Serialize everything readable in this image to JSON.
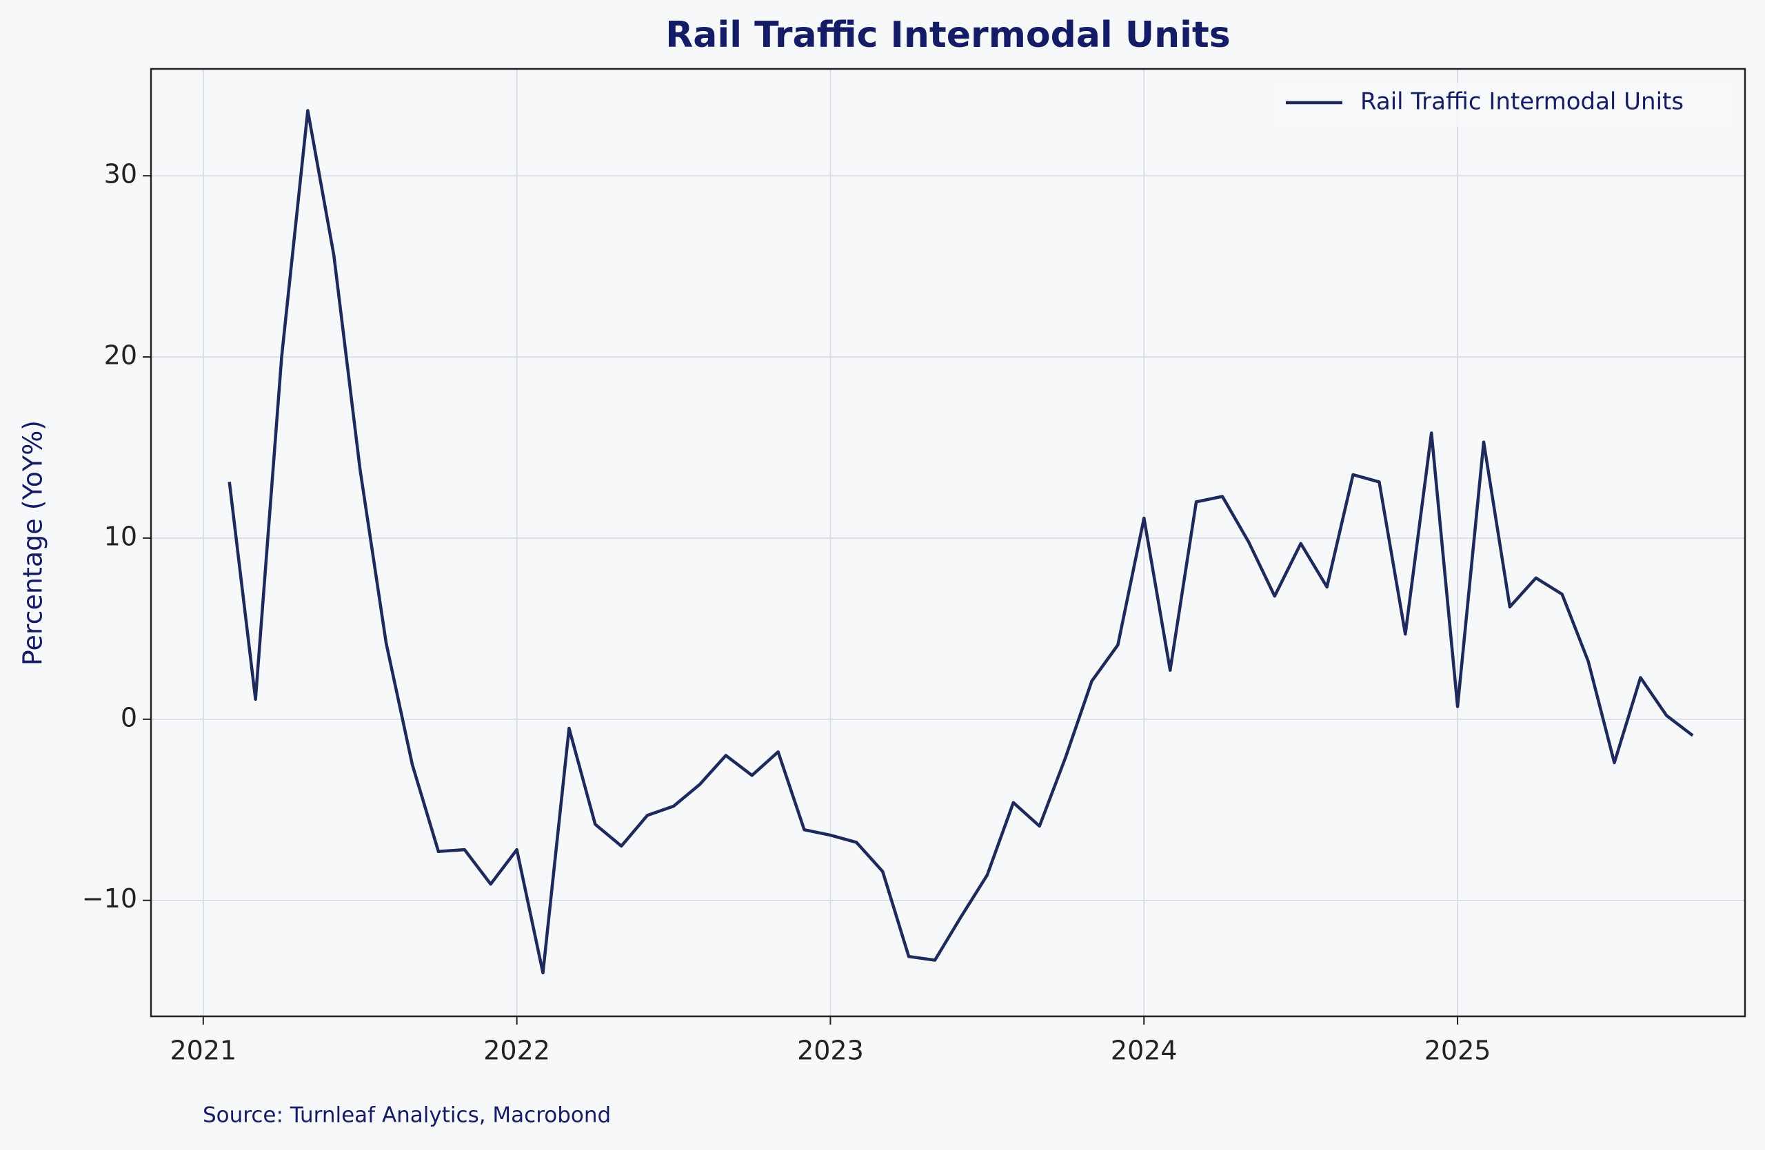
{
  "chart_data": {
    "type": "line",
    "title": "Rail Traffic Intermodal Units",
    "y_label": "Percentage (YoY%)",
    "source": "Source: Turnleaf Analytics, Macrobond",
    "x": [
      "2021-02",
      "2021-03",
      "2021-04",
      "2021-05",
      "2021-06",
      "2021-07",
      "2021-08",
      "2021-09",
      "2021-10",
      "2021-11",
      "2021-12",
      "2022-01",
      "2022-02",
      "2022-03",
      "2022-04",
      "2022-05",
      "2022-06",
      "2022-07",
      "2022-08",
      "2022-09",
      "2022-10",
      "2022-11",
      "2022-12",
      "2023-01",
      "2023-02",
      "2023-03",
      "2023-04",
      "2023-05",
      "2023-06",
      "2023-07",
      "2023-08",
      "2023-09",
      "2023-10",
      "2023-11",
      "2023-12",
      "2024-01",
      "2024-02",
      "2024-03",
      "2024-04",
      "2024-05",
      "2024-06",
      "2024-07",
      "2024-08",
      "2024-09",
      "2024-10",
      "2024-11",
      "2024-12",
      "2025-01",
      "2025-02",
      "2025-03",
      "2025-04",
      "2025-05",
      "2025-06",
      "2025-07",
      "2025-08",
      "2025-09",
      "2025-10"
    ],
    "series": [
      {
        "name": "Rail Traffic Intermodal Units",
        "color": "#1f2a5c",
        "values": [
          13.1,
          1.1,
          20.0,
          33.6,
          25.6,
          13.8,
          4.2,
          -2.5,
          -7.3,
          -7.2,
          -9.1,
          -7.2,
          -14.0,
          -0.5,
          -5.8,
          -7.0,
          -5.3,
          -4.8,
          -3.6,
          -2.0,
          -3.1,
          -1.8,
          -6.1,
          -6.4,
          -6.8,
          -8.4,
          -13.1,
          -13.3,
          -10.9,
          -8.6,
          -4.6,
          -5.9,
          -2.1,
          2.1,
          4.1,
          11.1,
          2.7,
          12.0,
          12.3,
          9.8,
          6.8,
          9.7,
          7.3,
          13.5,
          13.1,
          4.7,
          15.8,
          0.7,
          15.3,
          6.2,
          7.8,
          6.9,
          3.2,
          -2.4,
          2.3,
          0.2,
          -0.9
        ]
      }
    ],
    "xlim": [
      "2020-11",
      "2025-12"
    ],
    "xticks": [
      2021,
      2022,
      2023,
      2024,
      2025
    ],
    "ylim": [
      -16.4,
      35.9
    ],
    "yticks": [
      {
        "value": -10,
        "label": "−10"
      },
      0,
      10,
      20,
      30
    ],
    "grid": true,
    "legend": "upper right"
  }
}
